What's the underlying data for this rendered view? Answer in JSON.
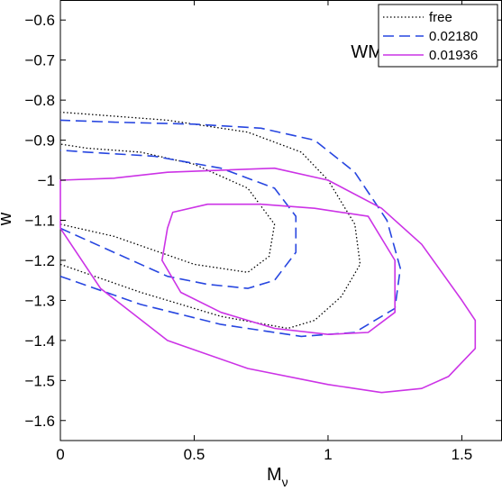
{
  "chart_data": {
    "type": "line",
    "xlabel": "M",
    "xlabel_sub": "ν",
    "ylabel": "w",
    "xlim": [
      0,
      1.65
    ],
    "ylim": [
      -1.65,
      -0.55
    ],
    "xticks": [
      0,
      0.5,
      1,
      1.5
    ],
    "xtick_labels": [
      "0",
      "0.5",
      "1",
      "1.5"
    ],
    "yticks": [
      -0.6,
      -0.7,
      -0.8,
      -0.9,
      -1.0,
      -1.1,
      -1.2,
      -1.3,
      -1.4,
      -1.5,
      -1.6
    ],
    "ytick_labels": [
      "−0.6",
      "−0.7",
      "−0.8",
      "−0.9",
      "−1",
      "−1.1",
      "−1.2",
      "−1.3",
      "−1.4",
      "−1.5",
      "−1.6"
    ],
    "annotation": "WMAP+BAO+SN",
    "grid": false,
    "legend_position": "top-right",
    "series": [
      {
        "name": "free",
        "color": "#000000",
        "style": "dotted",
        "contours": [
          {
            "x": [
              0,
              0.2,
              0.5,
              0.7,
              0.78,
              0.8,
              0.7,
              0.5,
              0.3,
              0.1,
              0
            ],
            "y": [
              -1.11,
              -1.14,
              -1.21,
              -1.23,
              -1.19,
              -1.11,
              -1.02,
              -0.96,
              -0.93,
              -0.92,
              -0.91
            ]
          },
          {
            "x": [
              0,
              0.3,
              0.6,
              0.85,
              0.95,
              1.05,
              1.12,
              1.1,
              1.0,
              0.9,
              0.7,
              0.4,
              0.1,
              0
            ],
            "y": [
              -1.21,
              -1.28,
              -1.34,
              -1.37,
              -1.35,
              -1.29,
              -1.21,
              -1.11,
              -1.0,
              -0.93,
              -0.88,
              -0.85,
              -0.835,
              -0.83
            ]
          }
        ]
      },
      {
        "name": "0.02180",
        "color": "#2746e0",
        "style": "dashed",
        "contours": [
          {
            "x": [
              0,
              0.2,
              0.4,
              0.55,
              0.7,
              0.8,
              0.88,
              0.88,
              0.8,
              0.6,
              0.35,
              0.1,
              0
            ],
            "y": [
              -1.12,
              -1.18,
              -1.24,
              -1.26,
              -1.27,
              -1.25,
              -1.18,
              -1.09,
              -1.02,
              -0.97,
              -0.94,
              -0.93,
              -0.925
            ]
          },
          {
            "x": [
              0,
              0.3,
              0.6,
              0.9,
              1.1,
              1.25,
              1.27,
              1.22,
              1.1,
              0.95,
              0.75,
              0.5,
              0.2,
              0
            ],
            "y": [
              -1.24,
              -1.31,
              -1.36,
              -1.39,
              -1.38,
              -1.32,
              -1.22,
              -1.1,
              -0.98,
              -0.9,
              -0.87,
              -0.86,
              -0.855,
              -0.85
            ]
          }
        ]
      },
      {
        "name": "0.01936",
        "color": "#cc33e6",
        "style": "solid",
        "contours": [
          {
            "x": [
              0.4,
              0.38,
              0.45,
              0.6,
              0.8,
              1.0,
              1.15,
              1.25,
              1.25,
              1.15,
              0.95,
              0.75,
              0.55,
              0.42,
              0.4
            ],
            "y": [
              -1.12,
              -1.2,
              -1.28,
              -1.33,
              -1.37,
              -1.385,
              -1.38,
              -1.33,
              -1.2,
              -1.09,
              -1.07,
              -1.06,
              -1.06,
              -1.08,
              -1.12
            ]
          },
          {
            "x": [
              0,
              0.15,
              0.4,
              0.7,
              1.0,
              1.2,
              1.35,
              1.45,
              1.55,
              1.55,
              1.5,
              1.35,
              1.2,
              1.0,
              0.8,
              0.6,
              0.4,
              0.2,
              0,
              0
            ],
            "y": [
              -1.12,
              -1.27,
              -1.4,
              -1.47,
              -1.51,
              -1.53,
              -1.52,
              -1.49,
              -1.42,
              -1.35,
              -1.3,
              -1.16,
              -1.07,
              -1.0,
              -0.97,
              -0.975,
              -0.98,
              -0.995,
              -1.0,
              -1.12
            ]
          }
        ]
      }
    ]
  }
}
